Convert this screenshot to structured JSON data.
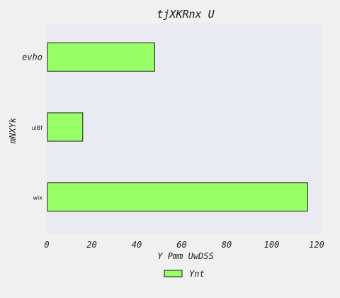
{
  "chart_data": {
    "type": "bar",
    "orientation": "horizontal",
    "title": "tjXKRnx  U",
    "xlabel": "Y Pmm UwDSS",
    "ylabel": "mNXYk",
    "categories": [
      "evho",
      "ulBf",
      "wix"
    ],
    "series": [
      {
        "name": "Ynt",
        "values": [
          48,
          16,
          116
        ]
      }
    ],
    "xlim": [
      0,
      120
    ],
    "xticks": [
      0,
      20,
      40,
      60,
      80,
      100,
      120
    ],
    "grid": false,
    "legend": "bottom-center",
    "colors": {
      "bar_fill": "#98ff66",
      "bar_stroke": "#1a1a1a",
      "plot_background": "#eaeaf2",
      "page_background": "#f0f0f0"
    }
  }
}
